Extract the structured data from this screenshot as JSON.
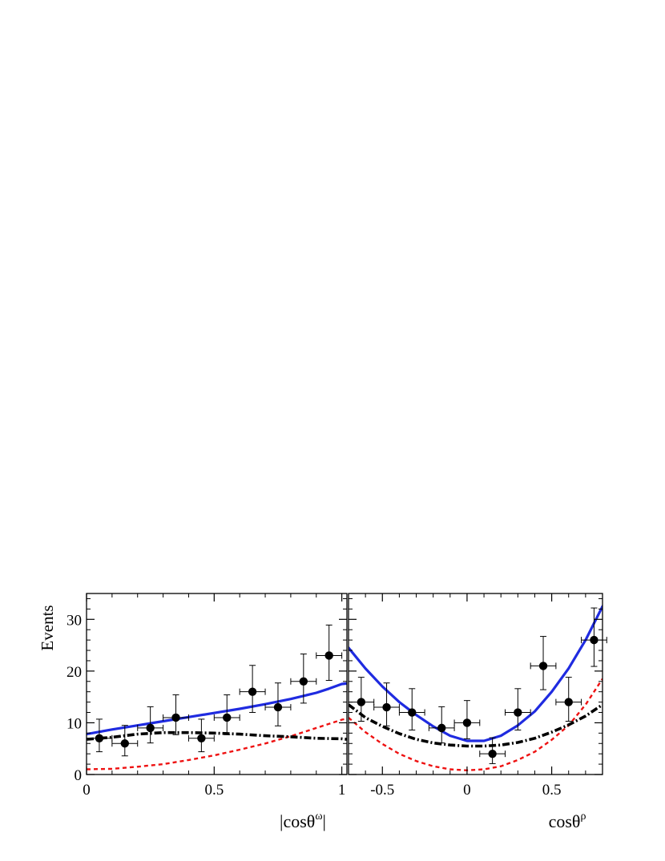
{
  "figure": {
    "ylabel": "Events",
    "colors": {
      "model_total": "#1f2be0",
      "model_dashed": "#ee1111",
      "model_dashdot": "#000000",
      "data": "#000000"
    }
  },
  "chart_data": [
    {
      "type": "scatter",
      "xlabel": "|cosθ^ω|",
      "xlabel_main": "|cosθ",
      "xlabel_sup": "ω",
      "xlabel_end": "|",
      "ylabel": "Events",
      "xlim": [
        0,
        1.02
      ],
      "ylim": [
        0,
        35
      ],
      "xticks": [
        0,
        0.5,
        1
      ],
      "xtick_labels": [
        "0",
        "0.5",
        "1"
      ],
      "yticks": [
        0,
        10,
        20,
        30
      ],
      "ytick_labels": [
        "0",
        "10",
        "20",
        "30"
      ],
      "data_points": [
        {
          "x": 0.05,
          "y": 7,
          "xerr": 0.05,
          "yerr_low": 2.6,
          "yerr_high": 3.7
        },
        {
          "x": 0.15,
          "y": 6,
          "xerr": 0.05,
          "yerr_low": 2.4,
          "yerr_high": 3.5
        },
        {
          "x": 0.25,
          "y": 9,
          "xerr": 0.05,
          "yerr_low": 2.9,
          "yerr_high": 4.1
        },
        {
          "x": 0.35,
          "y": 11,
          "xerr": 0.05,
          "yerr_low": 3.3,
          "yerr_high": 4.4
        },
        {
          "x": 0.45,
          "y": 7,
          "xerr": 0.05,
          "yerr_low": 2.6,
          "yerr_high": 3.7
        },
        {
          "x": 0.55,
          "y": 11,
          "xerr": 0.05,
          "yerr_low": 3.3,
          "yerr_high": 4.4
        },
        {
          "x": 0.65,
          "y": 16,
          "xerr": 0.05,
          "yerr_low": 4.0,
          "yerr_high": 5.1
        },
        {
          "x": 0.75,
          "y": 13,
          "xerr": 0.05,
          "yerr_low": 3.6,
          "yerr_high": 4.7
        },
        {
          "x": 0.85,
          "y": 18,
          "xerr": 0.05,
          "yerr_low": 4.2,
          "yerr_high": 5.3
        },
        {
          "x": 0.95,
          "y": 23,
          "xerr": 0.05,
          "yerr_low": 4.8,
          "yerr_high": 5.9
        }
      ],
      "curves": [
        {
          "style": "solid",
          "color": "#1f2be0",
          "x": [
            0,
            0.1,
            0.2,
            0.3,
            0.4,
            0.5,
            0.6,
            0.7,
            0.8,
            0.9,
            0.95,
            1.0,
            1.02
          ],
          "y": [
            7.8,
            8.7,
            9.5,
            10.3,
            11.1,
            11.9,
            12.7,
            13.6,
            14.6,
            15.8,
            16.6,
            17.5,
            17.6
          ]
        },
        {
          "style": "dashed",
          "color": "#ee1111",
          "x": [
            0,
            0.1,
            0.2,
            0.3,
            0.4,
            0.5,
            0.6,
            0.7,
            0.8,
            0.9,
            1.0,
            1.02
          ],
          "y": [
            1.0,
            1.1,
            1.5,
            2.0,
            2.8,
            3.7,
            4.8,
            6.0,
            7.4,
            9.0,
            10.6,
            10.8
          ]
        },
        {
          "style": "dashdot",
          "color": "#000000",
          "x": [
            0,
            0.1,
            0.2,
            0.3,
            0.4,
            0.5,
            0.6,
            0.7,
            0.8,
            0.9,
            1.0,
            1.02
          ],
          "y": [
            6.8,
            7.2,
            7.8,
            8.1,
            8.1,
            8.0,
            7.8,
            7.5,
            7.3,
            7.0,
            6.9,
            6.8
          ]
        }
      ]
    },
    {
      "type": "scatter",
      "xlabel": "cosθ^ρ",
      "xlabel_main": "cosθ",
      "xlabel_sup": "ρ",
      "xlabel_end": "",
      "ylabel": "",
      "xlim": [
        -0.7,
        0.8
      ],
      "ylim": [
        0,
        35
      ],
      "xticks": [
        -0.5,
        0,
        0.5
      ],
      "xtick_labels": [
        "-0.5",
        "0",
        "0.5"
      ],
      "yticks": [
        0,
        10,
        20,
        30
      ],
      "ytick_labels": [],
      "data_points": [
        {
          "x": -0.625,
          "y": 14,
          "xerr": 0.075,
          "yerr_low": 3.7,
          "yerr_high": 4.8
        },
        {
          "x": -0.475,
          "y": 13,
          "xerr": 0.075,
          "yerr_low": 3.6,
          "yerr_high": 4.7
        },
        {
          "x": -0.325,
          "y": 12,
          "xerr": 0.075,
          "yerr_low": 3.4,
          "yerr_high": 4.6
        },
        {
          "x": -0.15,
          "y": 9,
          "xerr": 0.075,
          "yerr_low": 2.9,
          "yerr_high": 4.1
        },
        {
          "x": 0.0,
          "y": 10,
          "xerr": 0.075,
          "yerr_low": 3.1,
          "yerr_high": 4.3
        },
        {
          "x": 0.15,
          "y": 4,
          "xerr": 0.075,
          "yerr_low": 1.9,
          "yerr_high": 3.1
        },
        {
          "x": 0.3,
          "y": 12,
          "xerr": 0.075,
          "yerr_low": 3.4,
          "yerr_high": 4.6
        },
        {
          "x": 0.45,
          "y": 21,
          "xerr": 0.075,
          "yerr_low": 4.6,
          "yerr_high": 5.7
        },
        {
          "x": 0.6,
          "y": 14,
          "xerr": 0.075,
          "yerr_low": 3.7,
          "yerr_high": 4.8
        },
        {
          "x": 0.75,
          "y": 26,
          "xerr": 0.075,
          "yerr_low": 5.1,
          "yerr_high": 6.2
        }
      ],
      "curves": [
        {
          "style": "solid",
          "color": "#1f2be0",
          "x": [
            -0.7,
            -0.6,
            -0.5,
            -0.4,
            -0.3,
            -0.2,
            -0.1,
            0.0,
            0.1,
            0.2,
            0.3,
            0.4,
            0.5,
            0.6,
            0.7,
            0.8
          ],
          "y": [
            24.5,
            20.5,
            17.0,
            14.0,
            11.5,
            9.3,
            7.5,
            6.5,
            6.5,
            7.5,
            9.5,
            12.2,
            16.0,
            20.5,
            26.0,
            32.5
          ]
        },
        {
          "style": "dashed",
          "color": "#ee1111",
          "x": [
            -0.7,
            -0.6,
            -0.5,
            -0.4,
            -0.3,
            -0.2,
            -0.1,
            0.0,
            0.1,
            0.2,
            0.3,
            0.4,
            0.5,
            0.6,
            0.7,
            0.8
          ],
          "y": [
            11.0,
            8.2,
            5.9,
            4.0,
            2.6,
            1.6,
            1.0,
            0.8,
            1.0,
            1.6,
            2.8,
            4.4,
            6.7,
            9.5,
            13.5,
            18.5
          ]
        },
        {
          "style": "dashdot",
          "color": "#000000",
          "x": [
            -0.7,
            -0.6,
            -0.5,
            -0.4,
            -0.3,
            -0.2,
            -0.1,
            0.0,
            0.1,
            0.2,
            0.3,
            0.4,
            0.5,
            0.6,
            0.7,
            0.8
          ],
          "y": [
            13.5,
            11.0,
            9.3,
            7.9,
            6.8,
            6.1,
            5.7,
            5.5,
            5.5,
            5.7,
            6.2,
            7.0,
            8.2,
            9.6,
            11.3,
            13.5
          ]
        }
      ]
    }
  ]
}
